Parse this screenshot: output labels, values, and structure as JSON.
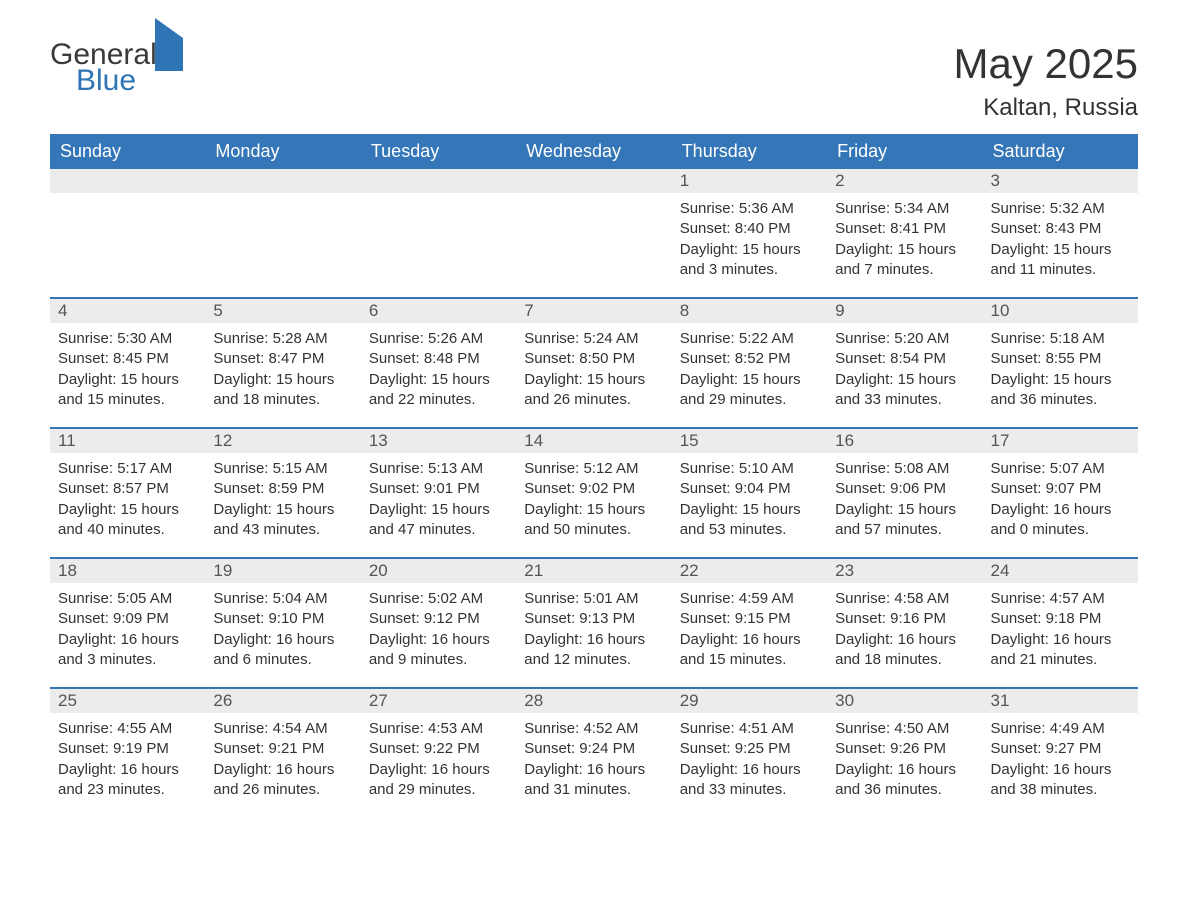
{
  "brand": {
    "general": "General",
    "blue": "Blue"
  },
  "title": "May 2025",
  "location": "Kaltan, Russia",
  "colors": {
    "header_bg": "#3476b7",
    "header_text": "#ffffff",
    "daynum_bg": "#ececec",
    "text": "#333333",
    "border": "#3476b7",
    "brand_blue": "#2f74b5"
  },
  "day_names": [
    "Sunday",
    "Monday",
    "Tuesday",
    "Wednesday",
    "Thursday",
    "Friday",
    "Saturday"
  ],
  "weeks": [
    [
      null,
      null,
      null,
      null,
      {
        "n": "1",
        "sunrise": "Sunrise: 5:36 AM",
        "sunset": "Sunset: 8:40 PM",
        "daylight": "Daylight: 15 hours and 3 minutes."
      },
      {
        "n": "2",
        "sunrise": "Sunrise: 5:34 AM",
        "sunset": "Sunset: 8:41 PM",
        "daylight": "Daylight: 15 hours and 7 minutes."
      },
      {
        "n": "3",
        "sunrise": "Sunrise: 5:32 AM",
        "sunset": "Sunset: 8:43 PM",
        "daylight": "Daylight: 15 hours and 11 minutes."
      }
    ],
    [
      {
        "n": "4",
        "sunrise": "Sunrise: 5:30 AM",
        "sunset": "Sunset: 8:45 PM",
        "daylight": "Daylight: 15 hours and 15 minutes."
      },
      {
        "n": "5",
        "sunrise": "Sunrise: 5:28 AM",
        "sunset": "Sunset: 8:47 PM",
        "daylight": "Daylight: 15 hours and 18 minutes."
      },
      {
        "n": "6",
        "sunrise": "Sunrise: 5:26 AM",
        "sunset": "Sunset: 8:48 PM",
        "daylight": "Daylight: 15 hours and 22 minutes."
      },
      {
        "n": "7",
        "sunrise": "Sunrise: 5:24 AM",
        "sunset": "Sunset: 8:50 PM",
        "daylight": "Daylight: 15 hours and 26 minutes."
      },
      {
        "n": "8",
        "sunrise": "Sunrise: 5:22 AM",
        "sunset": "Sunset: 8:52 PM",
        "daylight": "Daylight: 15 hours and 29 minutes."
      },
      {
        "n": "9",
        "sunrise": "Sunrise: 5:20 AM",
        "sunset": "Sunset: 8:54 PM",
        "daylight": "Daylight: 15 hours and 33 minutes."
      },
      {
        "n": "10",
        "sunrise": "Sunrise: 5:18 AM",
        "sunset": "Sunset: 8:55 PM",
        "daylight": "Daylight: 15 hours and 36 minutes."
      }
    ],
    [
      {
        "n": "11",
        "sunrise": "Sunrise: 5:17 AM",
        "sunset": "Sunset: 8:57 PM",
        "daylight": "Daylight: 15 hours and 40 minutes."
      },
      {
        "n": "12",
        "sunrise": "Sunrise: 5:15 AM",
        "sunset": "Sunset: 8:59 PM",
        "daylight": "Daylight: 15 hours and 43 minutes."
      },
      {
        "n": "13",
        "sunrise": "Sunrise: 5:13 AM",
        "sunset": "Sunset: 9:01 PM",
        "daylight": "Daylight: 15 hours and 47 minutes."
      },
      {
        "n": "14",
        "sunrise": "Sunrise: 5:12 AM",
        "sunset": "Sunset: 9:02 PM",
        "daylight": "Daylight: 15 hours and 50 minutes."
      },
      {
        "n": "15",
        "sunrise": "Sunrise: 5:10 AM",
        "sunset": "Sunset: 9:04 PM",
        "daylight": "Daylight: 15 hours and 53 minutes."
      },
      {
        "n": "16",
        "sunrise": "Sunrise: 5:08 AM",
        "sunset": "Sunset: 9:06 PM",
        "daylight": "Daylight: 15 hours and 57 minutes."
      },
      {
        "n": "17",
        "sunrise": "Sunrise: 5:07 AM",
        "sunset": "Sunset: 9:07 PM",
        "daylight": "Daylight: 16 hours and 0 minutes."
      }
    ],
    [
      {
        "n": "18",
        "sunrise": "Sunrise: 5:05 AM",
        "sunset": "Sunset: 9:09 PM",
        "daylight": "Daylight: 16 hours and 3 minutes."
      },
      {
        "n": "19",
        "sunrise": "Sunrise: 5:04 AM",
        "sunset": "Sunset: 9:10 PM",
        "daylight": "Daylight: 16 hours and 6 minutes."
      },
      {
        "n": "20",
        "sunrise": "Sunrise: 5:02 AM",
        "sunset": "Sunset: 9:12 PM",
        "daylight": "Daylight: 16 hours and 9 minutes."
      },
      {
        "n": "21",
        "sunrise": "Sunrise: 5:01 AM",
        "sunset": "Sunset: 9:13 PM",
        "daylight": "Daylight: 16 hours and 12 minutes."
      },
      {
        "n": "22",
        "sunrise": "Sunrise: 4:59 AM",
        "sunset": "Sunset: 9:15 PM",
        "daylight": "Daylight: 16 hours and 15 minutes."
      },
      {
        "n": "23",
        "sunrise": "Sunrise: 4:58 AM",
        "sunset": "Sunset: 9:16 PM",
        "daylight": "Daylight: 16 hours and 18 minutes."
      },
      {
        "n": "24",
        "sunrise": "Sunrise: 4:57 AM",
        "sunset": "Sunset: 9:18 PM",
        "daylight": "Daylight: 16 hours and 21 minutes."
      }
    ],
    [
      {
        "n": "25",
        "sunrise": "Sunrise: 4:55 AM",
        "sunset": "Sunset: 9:19 PM",
        "daylight": "Daylight: 16 hours and 23 minutes."
      },
      {
        "n": "26",
        "sunrise": "Sunrise: 4:54 AM",
        "sunset": "Sunset: 9:21 PM",
        "daylight": "Daylight: 16 hours and 26 minutes."
      },
      {
        "n": "27",
        "sunrise": "Sunrise: 4:53 AM",
        "sunset": "Sunset: 9:22 PM",
        "daylight": "Daylight: 16 hours and 29 minutes."
      },
      {
        "n": "28",
        "sunrise": "Sunrise: 4:52 AM",
        "sunset": "Sunset: 9:24 PM",
        "daylight": "Daylight: 16 hours and 31 minutes."
      },
      {
        "n": "29",
        "sunrise": "Sunrise: 4:51 AM",
        "sunset": "Sunset: 9:25 PM",
        "daylight": "Daylight: 16 hours and 33 minutes."
      },
      {
        "n": "30",
        "sunrise": "Sunrise: 4:50 AM",
        "sunset": "Sunset: 9:26 PM",
        "daylight": "Daylight: 16 hours and 36 minutes."
      },
      {
        "n": "31",
        "sunrise": "Sunrise: 4:49 AM",
        "sunset": "Sunset: 9:27 PM",
        "daylight": "Daylight: 16 hours and 38 minutes."
      }
    ]
  ]
}
